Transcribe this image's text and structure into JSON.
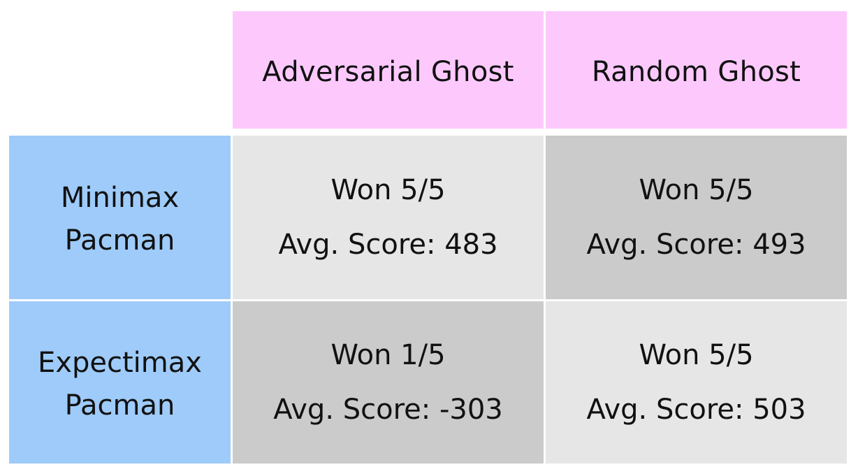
{
  "table": {
    "column_headers": [
      "Adversarial Ghost",
      "Random Ghost"
    ],
    "rows": [
      {
        "header_line1": "Minimax",
        "header_line2": "Pacman",
        "cells": [
          {
            "result": "Won 5/5",
            "score": "Avg. Score: 483"
          },
          {
            "result": "Won 5/5",
            "score": "Avg. Score: 493"
          }
        ]
      },
      {
        "header_line1": "Expectimax",
        "header_line2": "Pacman",
        "cells": [
          {
            "result": "Won 1/5",
            "score": "Avg. Score: -303"
          },
          {
            "result": "Won 5/5",
            "score": "Avg. Score: 503"
          }
        ]
      }
    ]
  },
  "colors": {
    "column_header_bg": "#fdc9fd",
    "row_header_bg": "#9ecbf9",
    "cell_light_bg": "#e6e6e6",
    "cell_dark_bg": "#cbcbcb"
  }
}
